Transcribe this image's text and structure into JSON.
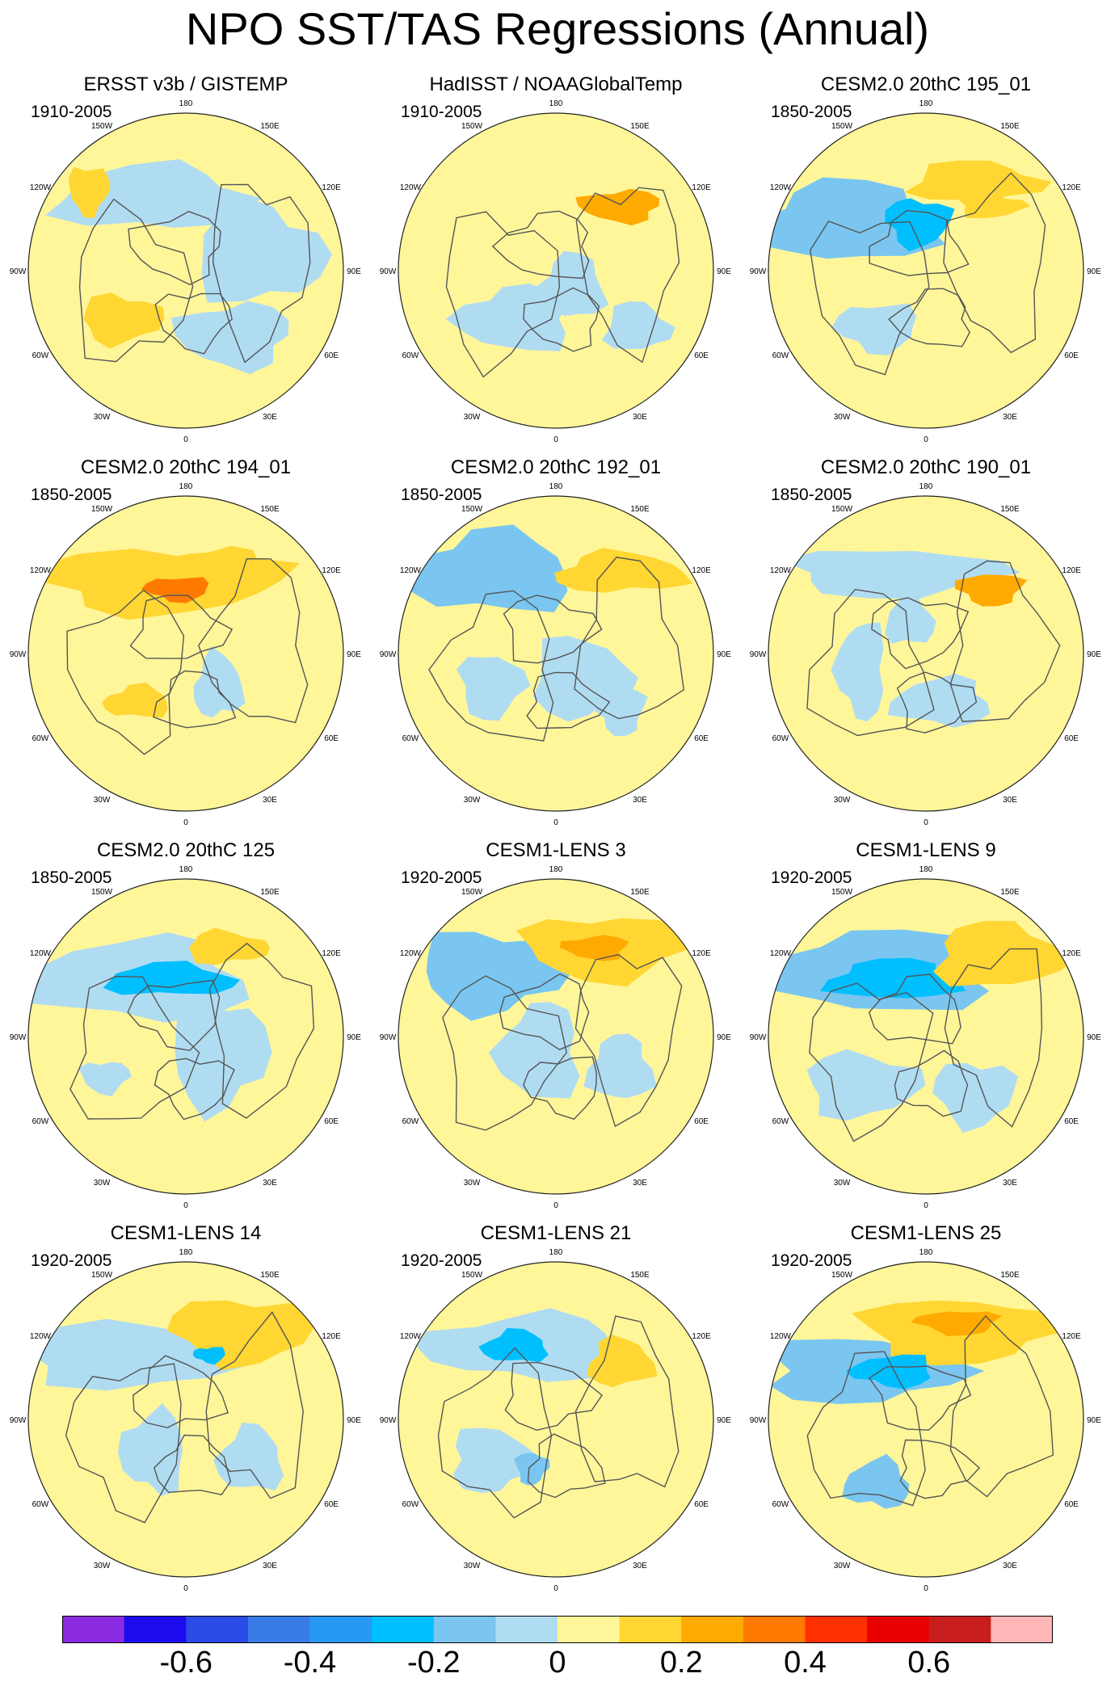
{
  "title": "NPO SST/TAS Regressions (Annual)",
  "longitude_labels": [
    "180",
    "150E",
    "120E",
    "90E",
    "60E",
    "30E",
    "0",
    "30W",
    "60W",
    "90W",
    "120W",
    "150W"
  ],
  "colorbar": {
    "labels": [
      "-0.6",
      "-0.4",
      "-0.2",
      "0",
      "0.2",
      "0.4",
      "0.6"
    ],
    "colors": [
      "#8a2be2",
      "#1e0cf0",
      "#2b4be6",
      "#3a7ce6",
      "#2898f5",
      "#00bfff",
      "#7ac6f0",
      "#b0dcf2",
      "#fff69a",
      "#ffd632",
      "#ffaa00",
      "#ff7a00",
      "#ff3000",
      "#e80000",
      "#c81e1e",
      "#ffb6b6"
    ]
  },
  "colors": {
    "positive_fill": "#fff69a",
    "negative_fill": "#b0dcf2",
    "coast": "#555555",
    "border": "#222222"
  },
  "panels": [
    {
      "title": "ERSST v3b / GISTEMP",
      "period": "1910-2005"
    },
    {
      "title": "HadISST / NOAAGlobalTemp",
      "period": "1910-2005"
    },
    {
      "title": "CESM2.0 20thC 195_01",
      "period": "1850-2005"
    },
    {
      "title": "CESM2.0 20thC 194_01",
      "period": "1850-2005"
    },
    {
      "title": "CESM2.0 20thC 192_01",
      "period": "1850-2005"
    },
    {
      "title": "CESM2.0 20thC 190_01",
      "period": "1850-2005"
    },
    {
      "title": "CESM2.0 20thC 125",
      "period": "1850-2005"
    },
    {
      "title": "CESM1-LENS 3",
      "period": "1920-2005"
    },
    {
      "title": "CESM1-LENS 9",
      "period": "1920-2005"
    },
    {
      "title": "CESM1-LENS 14",
      "period": "1920-2005"
    },
    {
      "title": "CESM1-LENS 21",
      "period": "1920-2005"
    },
    {
      "title": "CESM1-LENS 25",
      "period": "1920-2005"
    }
  ]
}
